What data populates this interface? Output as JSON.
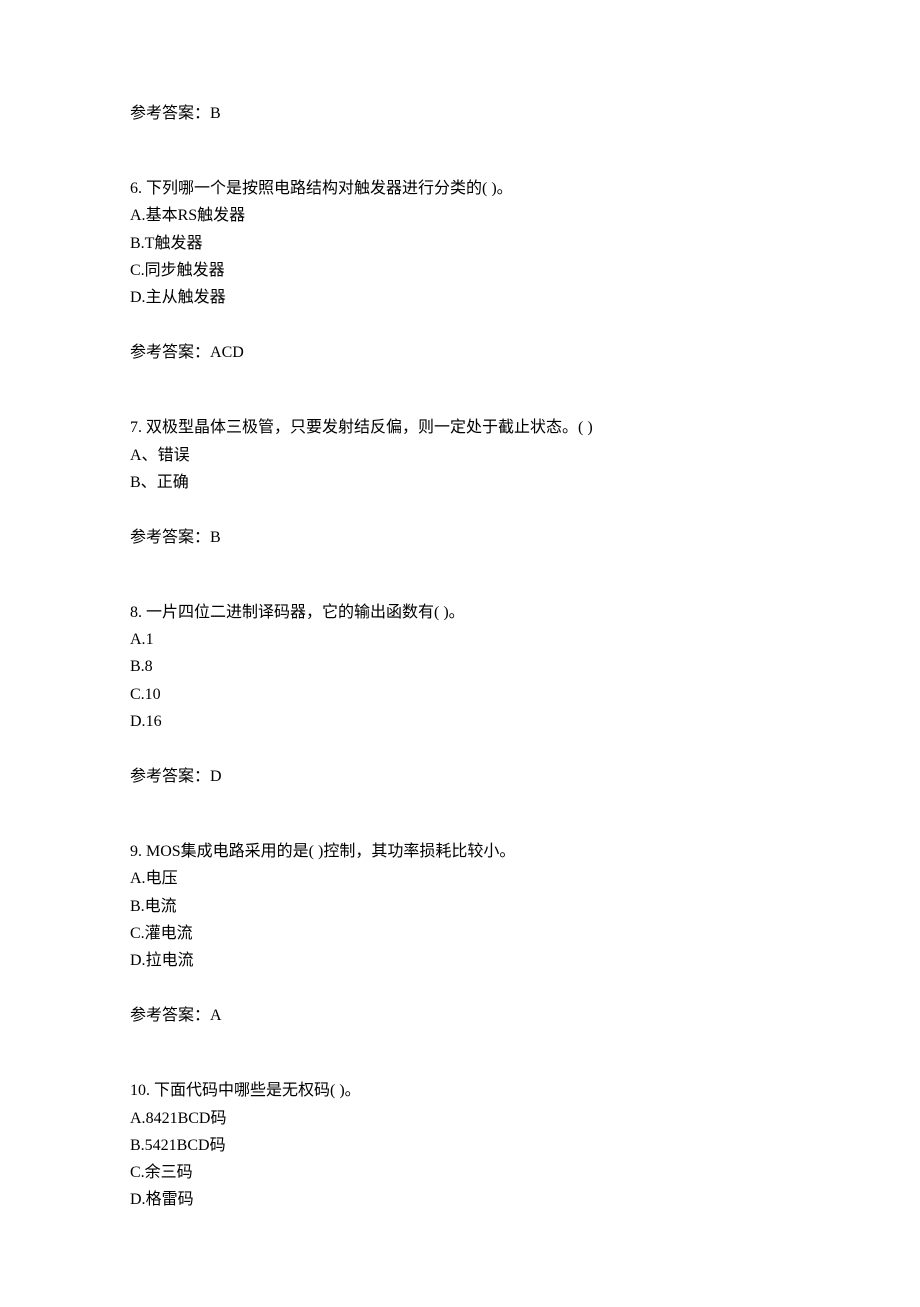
{
  "answer_prefix": "参考答案：",
  "prev_answer": {
    "value": "B"
  },
  "q6": {
    "number": "6. ",
    "stem": "下列哪一个是按照电路结构对触发器进行分类的(  )。",
    "optA_prefix": "A.",
    "optA_text": "基本RS触发器",
    "optB_prefix": "B.",
    "optB_text": "T触发器",
    "optC_prefix": "C.",
    "optC_text": "同步触发器",
    "optD_prefix": "D.",
    "optD_text": "主从触发器",
    "answer": "ACD"
  },
  "q7": {
    "number": "7. ",
    "stem": "双极型晶体三极管，只要发射结反偏，则一定处于截止状态。(  )",
    "optA_prefix": "A、",
    "optA_text": "错误",
    "optB_prefix": "B、",
    "optB_text": "正确",
    "answer": "B"
  },
  "q8": {
    "number": "8. ",
    "stem": "一片四位二进制译码器，它的输出函数有(  )。",
    "optA_prefix": "A.",
    "optA_text": "1",
    "optB_prefix": "B.",
    "optB_text": "8",
    "optC_prefix": "C.",
    "optC_text": "10",
    "optD_prefix": "D.",
    "optD_text": "16",
    "answer": "D"
  },
  "q9": {
    "number": "9. ",
    "stem": "MOS集成电路采用的是(  )控制，其功率损耗比较小。",
    "optA_prefix": "A.",
    "optA_text": "电压",
    "optB_prefix": "B.",
    "optB_text": "电流",
    "optC_prefix": "C.",
    "optC_text": "灌电流",
    "optD_prefix": "D.",
    "optD_text": "拉电流",
    "answer": "A"
  },
  "q10": {
    "number": "10. ",
    "stem": "下面代码中哪些是无权码(  )。",
    "optA_prefix": "A.",
    "optA_text": "8421BCD码",
    "optB_prefix": "B.",
    "optB_text": "5421BCD码",
    "optC_prefix": "C.",
    "optC_text": "余三码",
    "optD_prefix": "D.",
    "optD_text": "格雷码"
  }
}
